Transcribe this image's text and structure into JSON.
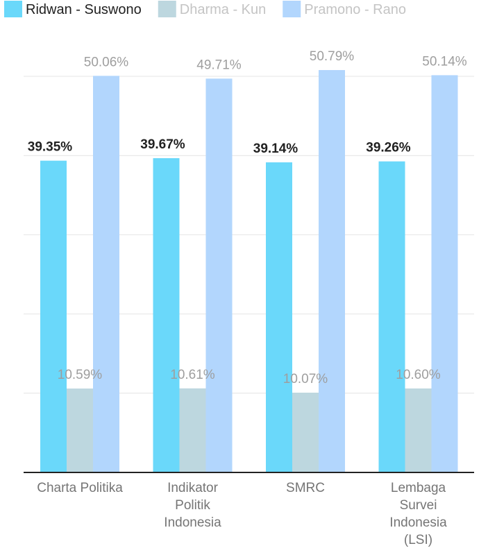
{
  "chart_data": {
    "type": "bar",
    "categories": [
      [
        "Charta Politika"
      ],
      [
        "Indikator",
        "Politik",
        "Indonesia"
      ],
      [
        "SMRC"
      ],
      [
        "Lembaga",
        "Survei",
        "Indonesia",
        "(LSI)"
      ]
    ],
    "series": [
      {
        "name": "Ridwan - Suswono",
        "values": [
          39.35,
          39.67,
          39.14,
          39.26
        ],
        "labels": [
          "39.35%",
          "39.67%",
          "39.14%",
          "39.26%"
        ],
        "color": "#6ad8fa",
        "legend_text_color": "#212121",
        "label_color": "#212121",
        "label_bold": true
      },
      {
        "name": "Dharma - Kun",
        "values": [
          10.59,
          10.61,
          10.07,
          10.6
        ],
        "labels": [
          "10.59%",
          "10.61%",
          "10.07%",
          "10.60%"
        ],
        "color": "#bdd7df",
        "legend_text_color": "#c4c4c4",
        "label_color": "#9e9e9e",
        "label_bold": false
      },
      {
        "name": "Pramono - Rano",
        "values": [
          50.06,
          49.71,
          50.79,
          50.14
        ],
        "labels": [
          "50.06%",
          "49.71%",
          "50.79%",
          "50.14%"
        ],
        "color": "#b2d6fd",
        "legend_text_color": "#c4c4c4",
        "label_color": "#9e9e9e",
        "label_bold": false
      }
    ],
    "ylim": [
      0,
      50
    ],
    "gridlines": [
      0,
      10,
      20,
      30,
      40,
      50
    ],
    "grid": true,
    "legend_position": "top-left",
    "title": "",
    "xlabel": "",
    "ylabel": ""
  }
}
